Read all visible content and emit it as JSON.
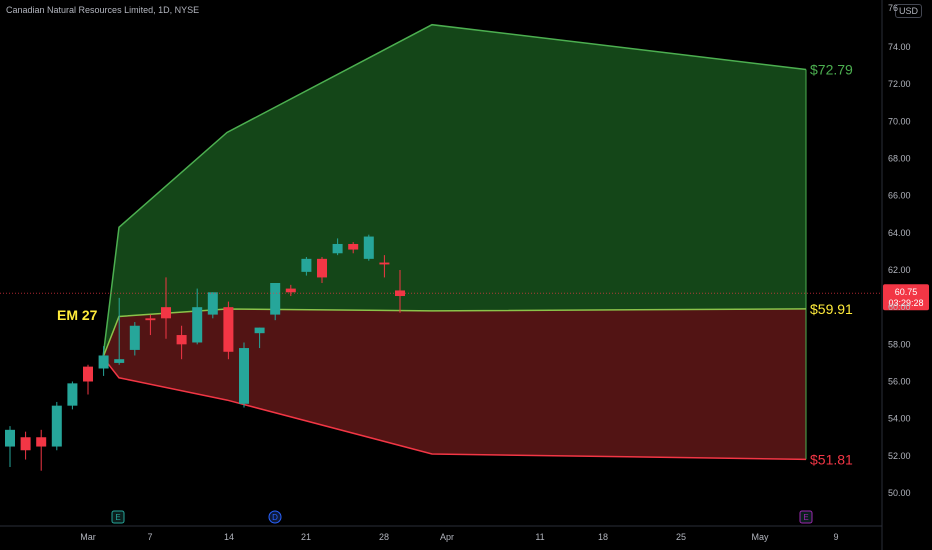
{
  "header": {
    "title": "Canadian Natural Resources Limited, 1D, NYSE",
    "currency_button": "USD"
  },
  "chart_data": {
    "type": "candlestick",
    "y_axis": {
      "ticks": [
        "50.00",
        "52.00",
        "54.00",
        "56.00",
        "58.00",
        "60.00",
        "62.00",
        "64.00",
        "66.00",
        "68.00",
        "70.00",
        "72.00",
        "74.00"
      ],
      "ylim": [
        48.5,
        76.5
      ],
      "clipped_top_label": "76"
    },
    "x_axis": {
      "labels": [
        "Mar",
        "7",
        "14",
        "21",
        "28",
        "Apr",
        "11",
        "18",
        "25",
        "May",
        "9"
      ]
    },
    "last_price": {
      "value": "60.75",
      "countdown": "03:29:28",
      "color": "#f23645"
    },
    "annotation": {
      "text": "EM 27",
      "color": "#ffeb3b"
    },
    "levels": [
      {
        "label": "$72.79",
        "value": 72.79,
        "color": "#4caf50"
      },
      {
        "label": "$59.91",
        "value": 59.91,
        "color": "#ffeb3b"
      },
      {
        "label": "$51.81",
        "value": 51.81,
        "color": "#f23645"
      }
    ],
    "expected_move": {
      "upper": [
        [
          57.3,
          "start"
        ],
        [
          64.3,
          "d1"
        ],
        [
          69.4,
          "d2"
        ],
        [
          75.2,
          "d3"
        ],
        [
          72.79,
          "end"
        ]
      ],
      "mid": [
        [
          57.3,
          "start"
        ],
        [
          59.5,
          "d1"
        ],
        [
          59.9,
          "d2"
        ],
        [
          59.8,
          "d3"
        ],
        [
          59.91,
          "end"
        ]
      ],
      "lower": [
        [
          57.3,
          "start"
        ],
        [
          56.2,
          "d1"
        ],
        [
          55.0,
          "d2"
        ],
        [
          52.1,
          "d3"
        ],
        [
          51.81,
          "end"
        ]
      ]
    },
    "candles": [
      {
        "o": 52.5,
        "h": 53.6,
        "l": 51.4,
        "c": 53.4
      },
      {
        "o": 53.0,
        "h": 53.3,
        "l": 51.8,
        "c": 52.3
      },
      {
        "o": 53.0,
        "h": 53.4,
        "l": 51.2,
        "c": 52.5
      },
      {
        "o": 52.5,
        "h": 54.9,
        "l": 52.3,
        "c": 54.7
      },
      {
        "o": 54.7,
        "h": 56.0,
        "l": 54.5,
        "c": 55.9
      },
      {
        "o": 56.8,
        "h": 56.9,
        "l": 55.3,
        "c": 56.0
      },
      {
        "o": 56.7,
        "h": 57.9,
        "l": 56.3,
        "c": 57.4
      },
      {
        "o": 57.0,
        "h": 60.5,
        "l": 56.9,
        "c": 57.2
      },
      {
        "o": 57.7,
        "h": 59.2,
        "l": 57.4,
        "c": 59.0
      },
      {
        "o": 59.4,
        "h": 59.6,
        "l": 58.5,
        "c": 59.3
      },
      {
        "o": 60.0,
        "h": 61.6,
        "l": 58.3,
        "c": 59.4
      },
      {
        "o": 58.5,
        "h": 59.0,
        "l": 57.2,
        "c": 58.0
      },
      {
        "o": 58.1,
        "h": 61.0,
        "l": 58.0,
        "c": 60.0
      },
      {
        "o": 59.6,
        "h": 60.8,
        "l": 59.4,
        "c": 60.8
      },
      {
        "o": 60.0,
        "h": 60.3,
        "l": 57.2,
        "c": 57.6
      },
      {
        "o": 54.8,
        "h": 58.1,
        "l": 54.6,
        "c": 57.8
      },
      {
        "o": 58.6,
        "h": 58.9,
        "l": 57.8,
        "c": 58.9
      },
      {
        "o": 59.6,
        "h": 61.3,
        "l": 59.3,
        "c": 61.3
      },
      {
        "o": 61.0,
        "h": 61.2,
        "l": 60.6,
        "c": 60.8
      },
      {
        "o": 61.9,
        "h": 62.7,
        "l": 61.7,
        "c": 62.6
      },
      {
        "o": 62.6,
        "h": 62.7,
        "l": 61.3,
        "c": 61.6
      },
      {
        "o": 62.9,
        "h": 63.7,
        "l": 62.8,
        "c": 63.4
      },
      {
        "o": 63.4,
        "h": 63.5,
        "l": 62.9,
        "c": 63.1
      },
      {
        "o": 62.6,
        "h": 63.9,
        "l": 62.5,
        "c": 63.8
      },
      {
        "o": 62.4,
        "h": 62.8,
        "l": 61.6,
        "c": 62.3
      },
      {
        "o": 60.9,
        "h": 62.0,
        "l": 59.7,
        "c": 60.6
      }
    ],
    "events": [
      {
        "label": "E",
        "kind": "earnings",
        "color": "#26a69a",
        "date_index": 7
      },
      {
        "label": "D",
        "kind": "dividend",
        "color": "#2962ff",
        "date_index": 18
      },
      {
        "label": "E",
        "kind": "earnings",
        "color": "#9c27b0",
        "date_index": 55
      }
    ],
    "colors": {
      "up": "#26a69a",
      "down": "#f23645",
      "upper_fill": "#1b5e20",
      "lower_fill": "#6d1b1b",
      "background": "#000000"
    }
  }
}
